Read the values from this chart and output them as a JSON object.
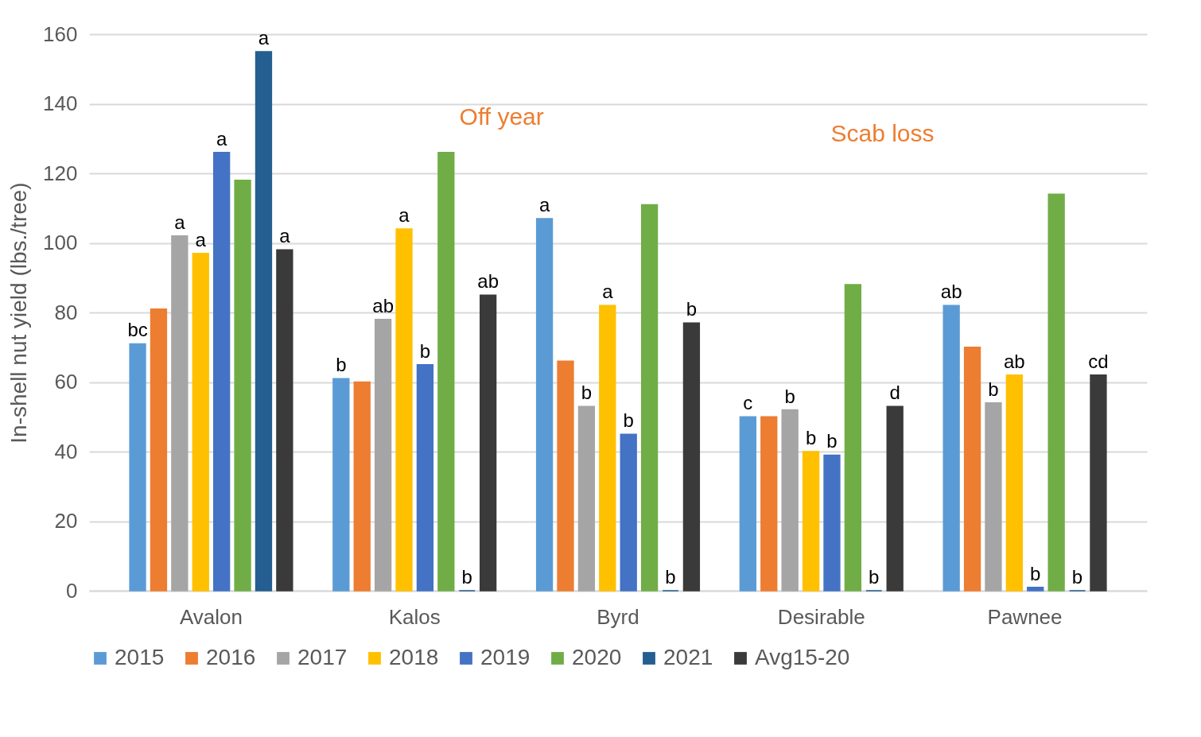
{
  "chart_data": {
    "type": "bar",
    "ylabel": "In-shell nut yield (lbs./tree)",
    "categories": [
      "Avalon",
      "Kalos",
      "Byrd",
      "Desirable",
      "Pawnee"
    ],
    "series": [
      {
        "name": "2015",
        "color": "#5b9bd5",
        "values": [
          71,
          61,
          107,
          50,
          82
        ],
        "value_labels": [
          "bc",
          "b",
          "a",
          "c",
          "ab"
        ]
      },
      {
        "name": "2016",
        "color": "#ed7d31",
        "values": [
          81,
          60,
          66,
          50,
          70
        ],
        "value_labels": [
          null,
          null,
          null,
          null,
          null
        ]
      },
      {
        "name": "2017",
        "color": "#a5a5a5",
        "values": [
          102,
          78,
          53,
          52,
          54
        ],
        "value_labels": [
          "a",
          "ab",
          "b",
          "b",
          "b"
        ]
      },
      {
        "name": "2018",
        "color": "#ffc000",
        "values": [
          97,
          104,
          82,
          40,
          62
        ],
        "value_labels": [
          "a",
          "a",
          "a",
          "b",
          "ab"
        ]
      },
      {
        "name": "2019",
        "color": "#4472c4",
        "values": [
          126,
          65,
          45,
          39,
          1
        ],
        "value_labels": [
          "a",
          "b",
          "b",
          "b",
          "b"
        ]
      },
      {
        "name": "2020",
        "color": "#70ad47",
        "values": [
          118,
          126,
          111,
          88,
          114
        ],
        "value_labels": [
          null,
          null,
          null,
          null,
          null
        ]
      },
      {
        "name": "2021",
        "color": "#255e91",
        "values": [
          155,
          0,
          0,
          0,
          0
        ],
        "value_labels": [
          "a",
          "b",
          "b",
          "b",
          "b"
        ]
      },
      {
        "name": "Avg15-20",
        "color": "#3a3a3a",
        "values": [
          98,
          85,
          77,
          53,
          62
        ],
        "value_labels": [
          "a",
          "ab",
          "b",
          "d",
          "cd"
        ]
      }
    ],
    "ylim": [
      0,
      160
    ],
    "yticks": [
      0,
      20,
      40,
      60,
      80,
      100,
      120,
      140,
      160
    ],
    "grid": "y",
    "legend": "bottom",
    "annotations": [
      "Off year",
      "Scab loss"
    ]
  }
}
